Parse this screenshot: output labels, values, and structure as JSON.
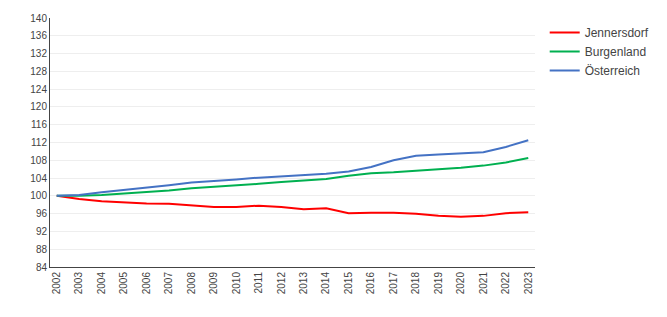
{
  "chart_data": {
    "type": "line",
    "x": [
      2002,
      2003,
      2004,
      2005,
      2006,
      2007,
      2008,
      2009,
      2010,
      2011,
      2012,
      2013,
      2014,
      2015,
      2016,
      2017,
      2018,
      2019,
      2020,
      2021,
      2022,
      2023
    ],
    "series": [
      {
        "name": "Jennersdorf",
        "color": "#ff0000",
        "values": [
          100,
          99.3,
          98.8,
          98.5,
          98.3,
          98.2,
          97.8,
          97.5,
          97.5,
          97.8,
          97.5,
          97.0,
          97.2,
          96.1,
          96.2,
          96.2,
          96.0,
          95.5,
          95.3,
          95.5,
          96.1,
          96.3
        ]
      },
      {
        "name": "Burgenland",
        "color": "#00b050",
        "values": [
          100,
          100.0,
          100.2,
          100.5,
          100.8,
          101.2,
          101.7,
          102.0,
          102.3,
          102.7,
          103.1,
          103.4,
          103.8,
          104.5,
          105.1,
          105.3,
          105.7,
          106.0,
          106.3,
          106.8,
          107.5,
          108.5
        ]
      },
      {
        "name": "Österreich",
        "color": "#4472c4",
        "values": [
          100,
          100.2,
          100.8,
          101.3,
          101.9,
          102.4,
          103.0,
          103.3,
          103.7,
          104.1,
          104.4,
          104.6,
          105.0,
          105.5,
          106.5,
          108.0,
          109.0,
          109.3,
          109.5,
          109.8,
          111.0,
          112.5
        ]
      }
    ],
    "xlim": [
      2001.7,
      2023.3
    ],
    "xticks": [
      2002,
      2003,
      2004,
      2005,
      2006,
      2007,
      2008,
      2009,
      2010,
      2011,
      2012,
      2013,
      2014,
      2015,
      2016,
      2017,
      2018,
      2019,
      2020,
      2021,
      2022,
      2023
    ],
    "ylim": [
      84,
      140
    ],
    "yticks": [
      84,
      88,
      92,
      96,
      100,
      104,
      108,
      112,
      116,
      120,
      124,
      128,
      132,
      136,
      140
    ],
    "grid": true,
    "legend": "right"
  }
}
